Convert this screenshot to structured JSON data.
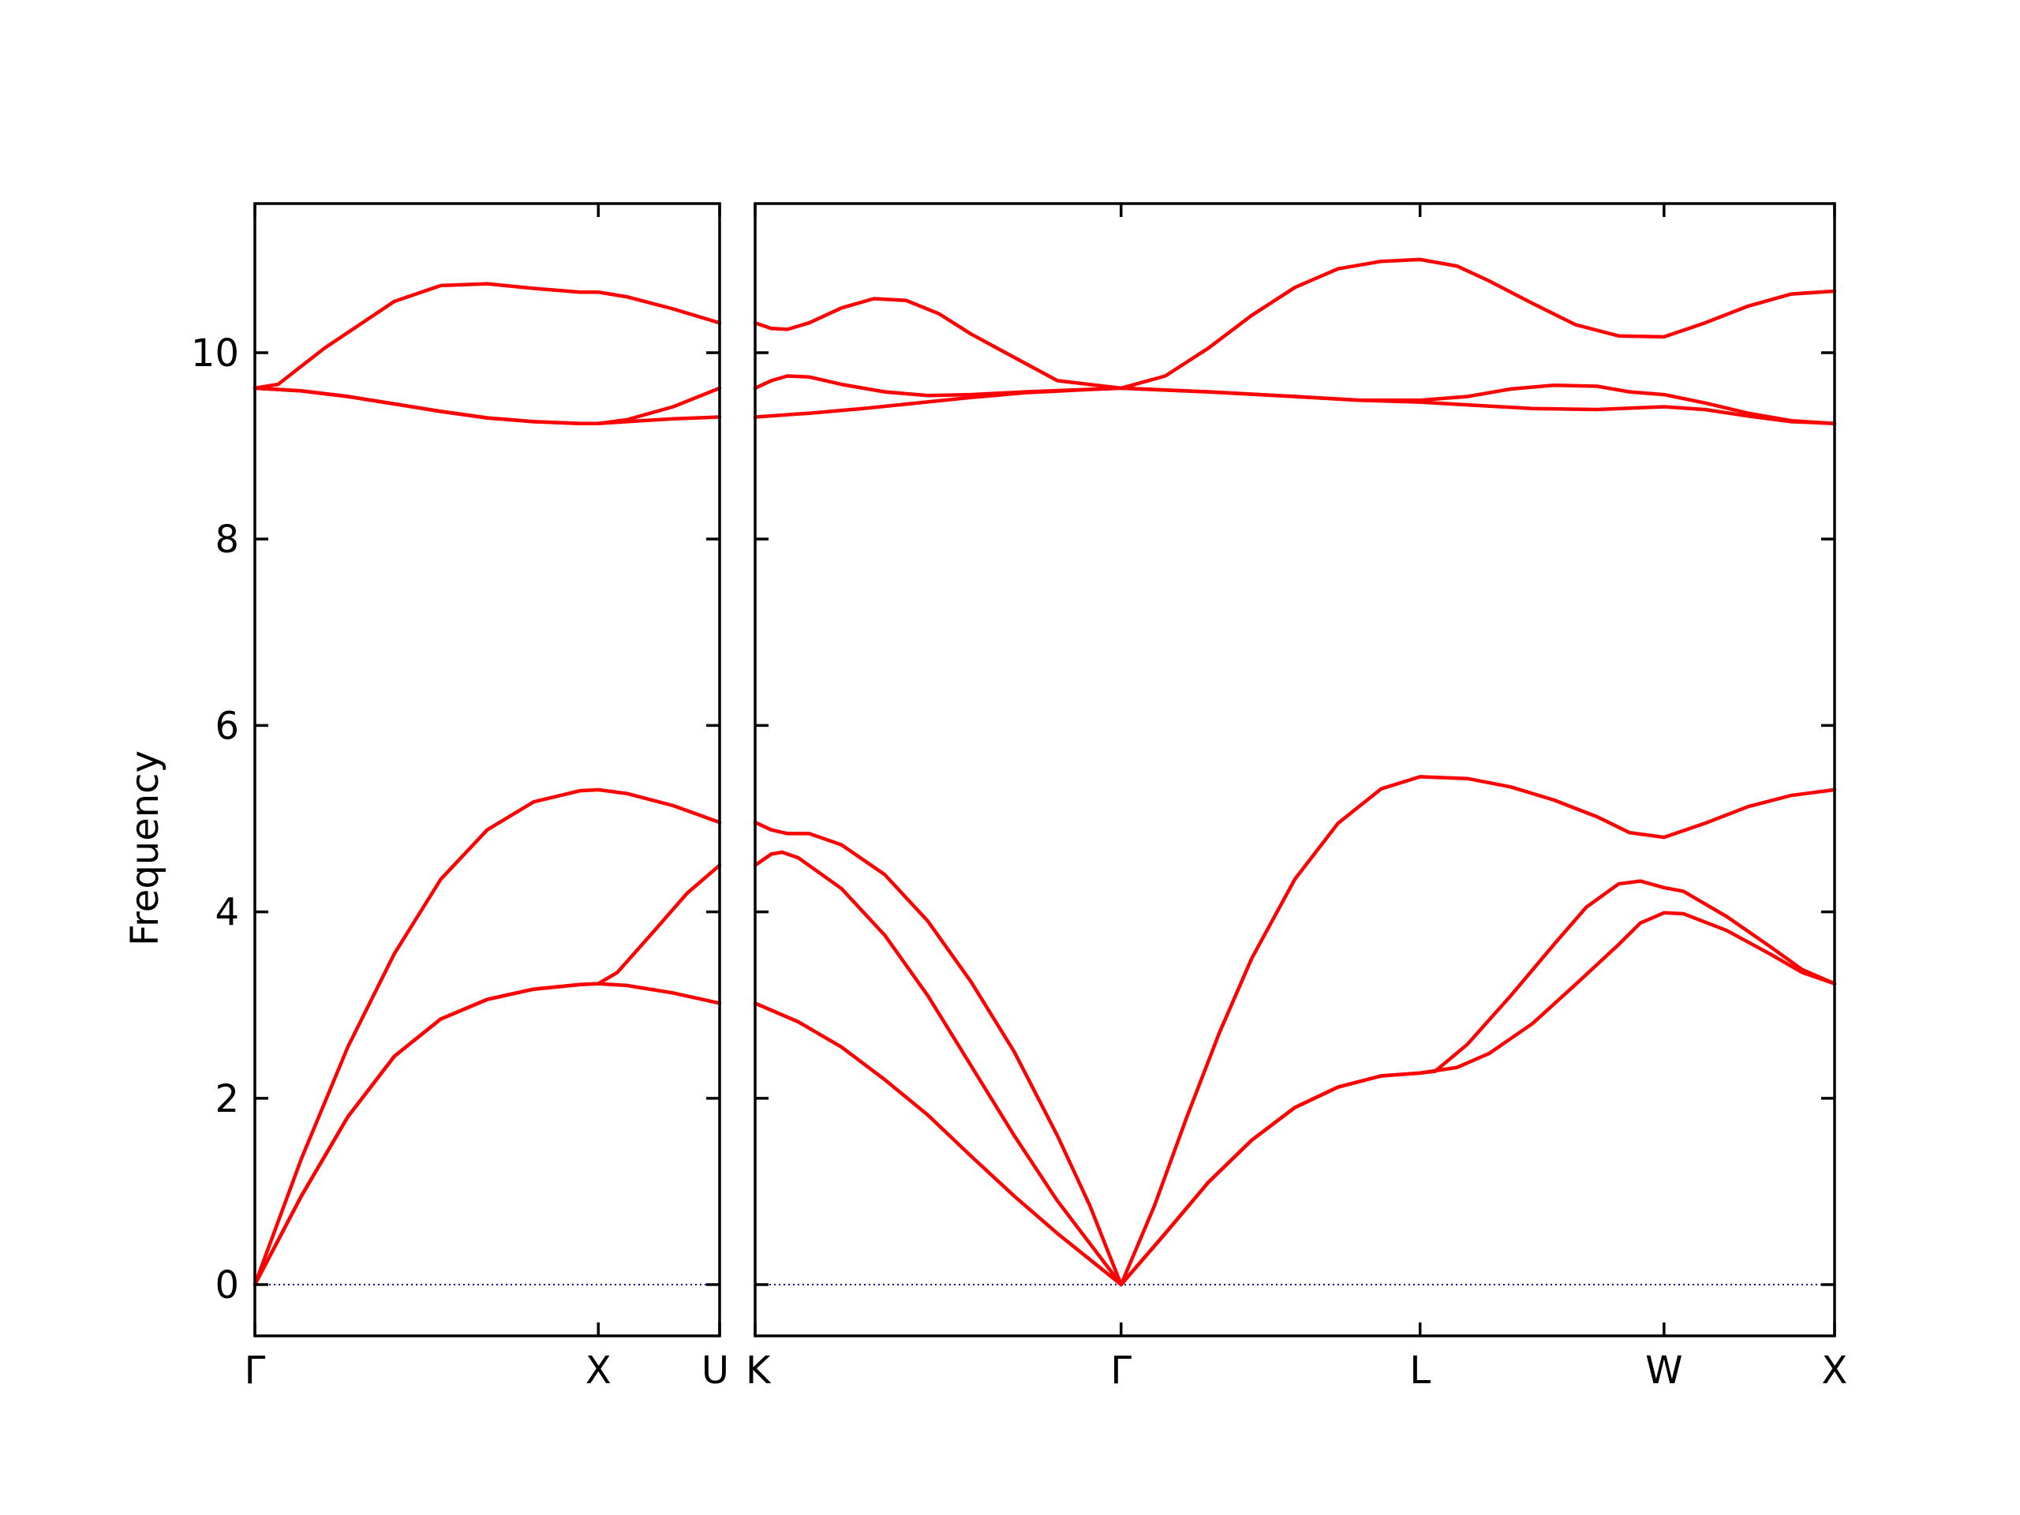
{
  "chart_data": {
    "type": "line",
    "ylabel": "Frequency",
    "ylim": [
      -0.55,
      11.6
    ],
    "yticks": [
      0,
      2,
      4,
      6,
      8,
      10
    ],
    "grid": false,
    "legend": "none",
    "line_color": "#ff0000",
    "zero_line_color": "#0000cc",
    "panels": [
      {
        "xlim": [
          0,
          1
        ],
        "xticks": [
          {
            "x": 0,
            "label": "Γ"
          },
          {
            "x": 0.739,
            "label": "X"
          },
          {
            "x": 1,
            "label": "U"
          }
        ],
        "series": [
          {
            "points": [
              [
                0,
                0
              ],
              [
                0.1,
                1.35
              ],
              [
                0.2,
                2.55
              ],
              [
                0.3,
                3.55
              ],
              [
                0.4,
                4.35
              ],
              [
                0.5,
                4.88
              ],
              [
                0.6,
                5.18
              ],
              [
                0.7,
                5.3
              ],
              [
                0.739,
                5.31
              ],
              [
                0.8,
                5.27
              ],
              [
                0.9,
                5.14
              ],
              [
                1.0,
                4.96
              ]
            ]
          },
          {
            "points": [
              [
                0,
                0
              ],
              [
                0.1,
                0.95
              ],
              [
                0.2,
                1.8
              ],
              [
                0.3,
                2.45
              ],
              [
                0.4,
                2.85
              ],
              [
                0.5,
                3.06
              ],
              [
                0.6,
                3.17
              ],
              [
                0.7,
                3.22
              ],
              [
                0.739,
                3.23
              ],
              [
                0.8,
                3.21
              ],
              [
                0.9,
                3.13
              ],
              [
                1.0,
                3.02
              ]
            ]
          },
          {
            "points": [
              [
                0,
                0
              ],
              [
                0.1,
                0.95
              ],
              [
                0.2,
                1.8
              ],
              [
                0.3,
                2.45
              ],
              [
                0.4,
                2.85
              ],
              [
                0.5,
                3.06
              ],
              [
                0.6,
                3.17
              ],
              [
                0.7,
                3.22
              ],
              [
                0.739,
                3.23
              ],
              [
                0.78,
                3.35
              ],
              [
                0.86,
                3.8
              ],
              [
                0.93,
                4.2
              ],
              [
                1.0,
                4.5
              ]
            ]
          },
          {
            "points": [
              [
                0,
                9.62
              ],
              [
                0.05,
                9.66
              ],
              [
                0.15,
                10.05
              ],
              [
                0.3,
                10.55
              ],
              [
                0.4,
                10.72
              ],
              [
                0.5,
                10.74
              ],
              [
                0.6,
                10.69
              ],
              [
                0.7,
                10.65
              ],
              [
                0.739,
                10.65
              ],
              [
                0.8,
                10.6
              ],
              [
                0.9,
                10.47
              ],
              [
                1.0,
                10.32
              ]
            ]
          },
          {
            "points": [
              [
                0,
                9.62
              ],
              [
                0.1,
                9.59
              ],
              [
                0.2,
                9.53
              ],
              [
                0.3,
                9.45
              ],
              [
                0.4,
                9.37
              ],
              [
                0.5,
                9.3
              ],
              [
                0.6,
                9.26
              ],
              [
                0.7,
                9.24
              ],
              [
                0.739,
                9.24
              ],
              [
                0.8,
                9.26
              ],
              [
                0.9,
                9.29
              ],
              [
                1.0,
                9.31
              ]
            ]
          },
          {
            "points": [
              [
                0,
                9.62
              ],
              [
                0.1,
                9.59
              ],
              [
                0.2,
                9.53
              ],
              [
                0.3,
                9.45
              ],
              [
                0.4,
                9.37
              ],
              [
                0.5,
                9.3
              ],
              [
                0.6,
                9.26
              ],
              [
                0.7,
                9.24
              ],
              [
                0.739,
                9.24
              ],
              [
                0.8,
                9.28
              ],
              [
                0.9,
                9.42
              ],
              [
                1.0,
                9.62
              ]
            ]
          }
        ]
      },
      {
        "xlim": [
          0,
          1
        ],
        "xticks": [
          {
            "x": 0,
            "label": "K"
          },
          {
            "x": 0.339,
            "label": "Γ"
          },
          {
            "x": 0.616,
            "label": "L"
          },
          {
            "x": 0.842,
            "label": "W"
          },
          {
            "x": 1,
            "label": "X"
          }
        ],
        "series": [
          {
            "points": [
              [
                0,
                4.96
              ],
              [
                0.015,
                4.88
              ],
              [
                0.03,
                4.84
              ],
              [
                0.05,
                4.84
              ],
              [
                0.08,
                4.72
              ],
              [
                0.12,
                4.4
              ],
              [
                0.16,
                3.9
              ],
              [
                0.2,
                3.25
              ],
              [
                0.24,
                2.5
              ],
              [
                0.28,
                1.6
              ],
              [
                0.31,
                0.85
              ],
              [
                0.339,
                0
              ],
              [
                0.37,
                0.85
              ],
              [
                0.4,
                1.8
              ],
              [
                0.43,
                2.7
              ],
              [
                0.46,
                3.5
              ],
              [
                0.5,
                4.35
              ],
              [
                0.54,
                4.95
              ],
              [
                0.58,
                5.32
              ],
              [
                0.616,
                5.45
              ],
              [
                0.66,
                5.43
              ],
              [
                0.7,
                5.34
              ],
              [
                0.74,
                5.2
              ],
              [
                0.78,
                5.02
              ],
              [
                0.81,
                4.85
              ],
              [
                0.842,
                4.8
              ],
              [
                0.88,
                4.95
              ],
              [
                0.92,
                5.13
              ],
              [
                0.96,
                5.25
              ],
              [
                1.0,
                5.31
              ]
            ]
          },
          {
            "points": [
              [
                0,
                4.5
              ],
              [
                0.015,
                4.62
              ],
              [
                0.025,
                4.64
              ],
              [
                0.04,
                4.58
              ],
              [
                0.08,
                4.25
              ],
              [
                0.12,
                3.75
              ],
              [
                0.16,
                3.1
              ],
              [
                0.2,
                2.35
              ],
              [
                0.24,
                1.6
              ],
              [
                0.28,
                0.9
              ],
              [
                0.339,
                0
              ],
              [
                0.38,
                0.55
              ],
              [
                0.42,
                1.1
              ],
              [
                0.46,
                1.55
              ],
              [
                0.5,
                1.9
              ],
              [
                0.54,
                2.12
              ],
              [
                0.58,
                2.24
              ],
              [
                0.616,
                2.27
              ],
              [
                0.63,
                2.29
              ],
              [
                0.66,
                2.58
              ],
              [
                0.7,
                3.1
              ],
              [
                0.74,
                3.65
              ],
              [
                0.77,
                4.05
              ],
              [
                0.8,
                4.3
              ],
              [
                0.82,
                4.33
              ],
              [
                0.842,
                4.26
              ],
              [
                0.86,
                4.22
              ],
              [
                0.9,
                3.95
              ],
              [
                0.94,
                3.63
              ],
              [
                0.97,
                3.38
              ],
              [
                1.0,
                3.23
              ]
            ]
          },
          {
            "points": [
              [
                0,
                3.02
              ],
              [
                0.04,
                2.82
              ],
              [
                0.08,
                2.55
              ],
              [
                0.12,
                2.2
              ],
              [
                0.16,
                1.82
              ],
              [
                0.2,
                1.38
              ],
              [
                0.24,
                0.95
              ],
              [
                0.28,
                0.55
              ],
              [
                0.339,
                0
              ],
              [
                0.38,
                0.55
              ],
              [
                0.42,
                1.1
              ],
              [
                0.46,
                1.55
              ],
              [
                0.5,
                1.9
              ],
              [
                0.54,
                2.12
              ],
              [
                0.58,
                2.24
              ],
              [
                0.616,
                2.27
              ],
              [
                0.65,
                2.33
              ],
              [
                0.68,
                2.48
              ],
              [
                0.72,
                2.8
              ],
              [
                0.76,
                3.22
              ],
              [
                0.8,
                3.65
              ],
              [
                0.82,
                3.88
              ],
              [
                0.842,
                3.99
              ],
              [
                0.86,
                3.98
              ],
              [
                0.9,
                3.8
              ],
              [
                0.94,
                3.55
              ],
              [
                0.97,
                3.35
              ],
              [
                1.0,
                3.23
              ]
            ]
          },
          {
            "points": [
              [
                0,
                10.32
              ],
              [
                0.015,
                10.26
              ],
              [
                0.03,
                10.25
              ],
              [
                0.05,
                10.32
              ],
              [
                0.08,
                10.48
              ],
              [
                0.11,
                10.58
              ],
              [
                0.14,
                10.56
              ],
              [
                0.17,
                10.42
              ],
              [
                0.2,
                10.2
              ],
              [
                0.24,
                9.95
              ],
              [
                0.28,
                9.7
              ],
              [
                0.339,
                9.62
              ],
              [
                0.38,
                9.75
              ],
              [
                0.42,
                10.05
              ],
              [
                0.46,
                10.4
              ],
              [
                0.5,
                10.7
              ],
              [
                0.54,
                10.9
              ],
              [
                0.58,
                10.98
              ],
              [
                0.616,
                11.0
              ],
              [
                0.65,
                10.93
              ],
              [
                0.68,
                10.77
              ],
              [
                0.72,
                10.53
              ],
              [
                0.76,
                10.3
              ],
              [
                0.8,
                10.18
              ],
              [
                0.842,
                10.17
              ],
              [
                0.88,
                10.32
              ],
              [
                0.92,
                10.5
              ],
              [
                0.96,
                10.63
              ],
              [
                1.0,
                10.66
              ]
            ]
          },
          {
            "points": [
              [
                0,
                9.62
              ],
              [
                0.015,
                9.7
              ],
              [
                0.03,
                9.75
              ],
              [
                0.05,
                9.74
              ],
              [
                0.08,
                9.66
              ],
              [
                0.12,
                9.58
              ],
              [
                0.16,
                9.54
              ],
              [
                0.2,
                9.55
              ],
              [
                0.25,
                9.58
              ],
              [
                0.339,
                9.62
              ],
              [
                0.42,
                9.58
              ],
              [
                0.5,
                9.53
              ],
              [
                0.56,
                9.49
              ],
              [
                0.616,
                9.49
              ],
              [
                0.66,
                9.53
              ],
              [
                0.7,
                9.61
              ],
              [
                0.74,
                9.65
              ],
              [
                0.78,
                9.64
              ],
              [
                0.81,
                9.58
              ],
              [
                0.842,
                9.55
              ],
              [
                0.88,
                9.46
              ],
              [
                0.92,
                9.35
              ],
              [
                0.96,
                9.27
              ],
              [
                1.0,
                9.24
              ]
            ]
          },
          {
            "points": [
              [
                0,
                9.31
              ],
              [
                0.05,
                9.35
              ],
              [
                0.1,
                9.4
              ],
              [
                0.15,
                9.46
              ],
              [
                0.2,
                9.52
              ],
              [
                0.25,
                9.57
              ],
              [
                0.3,
                9.6
              ],
              [
                0.339,
                9.62
              ],
              [
                0.42,
                9.58
              ],
              [
                0.5,
                9.53
              ],
              [
                0.56,
                9.49
              ],
              [
                0.616,
                9.47
              ],
              [
                0.66,
                9.44
              ],
              [
                0.72,
                9.4
              ],
              [
                0.78,
                9.39
              ],
              [
                0.842,
                9.42
              ],
              [
                0.88,
                9.39
              ],
              [
                0.92,
                9.32
              ],
              [
                0.96,
                9.26
              ],
              [
                1.0,
                9.24
              ]
            ]
          }
        ]
      }
    ]
  }
}
